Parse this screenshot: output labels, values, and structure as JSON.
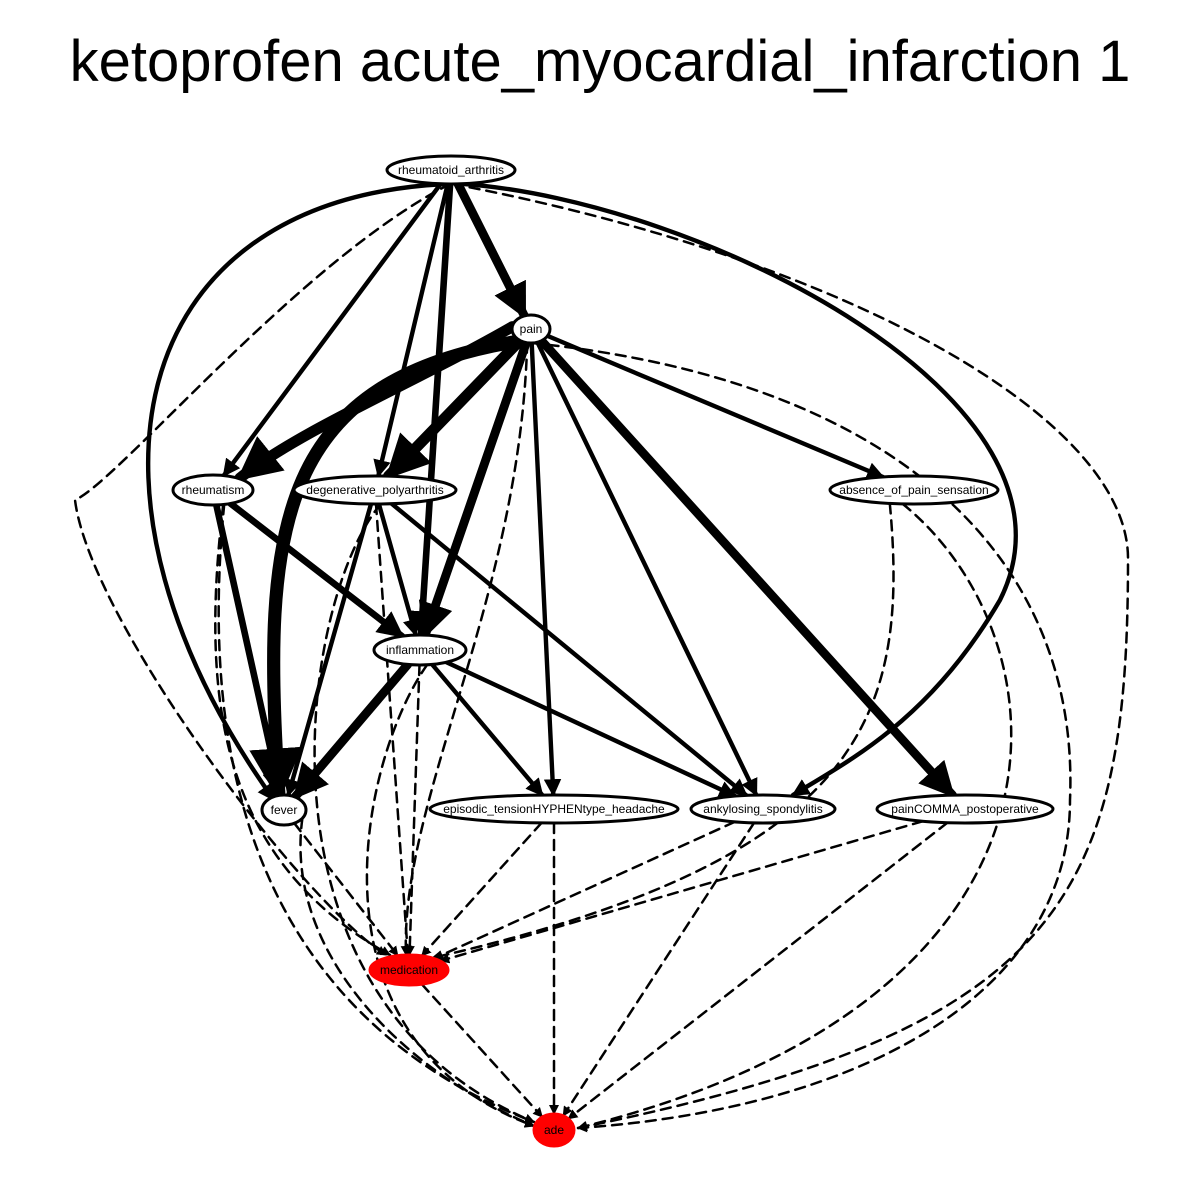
{
  "title": "ketoprofen acute_myocardial_infarction 1",
  "colors": {
    "highlight": "#ff0000",
    "stroke": "#000000",
    "node_fill": "#ffffff"
  },
  "nodes": [
    {
      "id": "rheumatoid_arthritis",
      "label": "rheumatoid_arthritis",
      "highlight": false
    },
    {
      "id": "pain",
      "label": "pain",
      "highlight": false
    },
    {
      "id": "rheumatism",
      "label": "rheumatism",
      "highlight": false
    },
    {
      "id": "degenerative_polyarthritis",
      "label": "degenerative_polyarthritis",
      "highlight": false
    },
    {
      "id": "absence_of_pain_sensation",
      "label": "absence_of_pain_sensation",
      "highlight": false
    },
    {
      "id": "inflammation",
      "label": "inflammation",
      "highlight": false
    },
    {
      "id": "fever",
      "label": "fever",
      "highlight": false
    },
    {
      "id": "episodic_tension_headache",
      "label": "episodic_tensionHYPHENtype_headache",
      "highlight": false
    },
    {
      "id": "ankylosing_spondylitis",
      "label": "ankylosing_spondylitis",
      "highlight": false
    },
    {
      "id": "pain_postoperative",
      "label": "painCOMMA_postoperative",
      "highlight": false
    },
    {
      "id": "medication",
      "label": "medication",
      "highlight": true
    },
    {
      "id": "ade",
      "label": "ade",
      "highlight": true
    }
  ],
  "edges": [
    {
      "from": "rheumatoid_arthritis",
      "to": "pain",
      "style": "solid",
      "weight": 4
    },
    {
      "from": "rheumatoid_arthritis",
      "to": "rheumatism",
      "style": "solid",
      "weight": 2
    },
    {
      "from": "rheumatoid_arthritis",
      "to": "degenerative_polyarthritis",
      "style": "solid",
      "weight": 2
    },
    {
      "from": "rheumatoid_arthritis",
      "to": "inflammation",
      "style": "solid",
      "weight": 3
    },
    {
      "from": "rheumatoid_arthritis",
      "to": "fever",
      "style": "solid",
      "weight": 2
    },
    {
      "from": "rheumatoid_arthritis",
      "to": "ankylosing_spondylitis",
      "style": "solid",
      "weight": 2
    },
    {
      "from": "rheumatoid_arthritis",
      "to": "medication",
      "style": "dashed",
      "weight": 1
    },
    {
      "from": "rheumatoid_arthritis",
      "to": "ade",
      "style": "dashed",
      "weight": 1
    },
    {
      "from": "pain",
      "to": "rheumatism",
      "style": "solid",
      "weight": 5
    },
    {
      "from": "pain",
      "to": "degenerative_polyarthritis",
      "style": "solid",
      "weight": 5
    },
    {
      "from": "pain",
      "to": "inflammation",
      "style": "solid",
      "weight": 4
    },
    {
      "from": "pain",
      "to": "fever",
      "style": "solid",
      "weight": 6
    },
    {
      "from": "pain",
      "to": "absence_of_pain_sensation",
      "style": "solid",
      "weight": 2
    },
    {
      "from": "pain",
      "to": "episodic_tension_headache",
      "style": "solid",
      "weight": 2
    },
    {
      "from": "pain",
      "to": "ankylosing_spondylitis",
      "style": "solid",
      "weight": 2
    },
    {
      "from": "pain",
      "to": "pain_postoperative",
      "style": "solid",
      "weight": 4
    },
    {
      "from": "pain",
      "to": "medication",
      "style": "dashed",
      "weight": 1
    },
    {
      "from": "pain",
      "to": "ade",
      "style": "dashed",
      "weight": 1
    },
    {
      "from": "rheumatism",
      "to": "inflammation",
      "style": "solid",
      "weight": 3
    },
    {
      "from": "rheumatism",
      "to": "fever",
      "style": "solid",
      "weight": 3
    },
    {
      "from": "rheumatism",
      "to": "medication",
      "style": "dashed",
      "weight": 1
    },
    {
      "from": "rheumatism",
      "to": "ade",
      "style": "dashed",
      "weight": 1
    },
    {
      "from": "degenerative_polyarthritis",
      "to": "inflammation",
      "style": "solid",
      "weight": 2
    },
    {
      "from": "degenerative_polyarthritis",
      "to": "fever",
      "style": "solid",
      "weight": 2
    },
    {
      "from": "degenerative_polyarthritis",
      "to": "ankylosing_spondylitis",
      "style": "solid",
      "weight": 2
    },
    {
      "from": "degenerative_polyarthritis",
      "to": "medication",
      "style": "dashed",
      "weight": 1
    },
    {
      "from": "degenerative_polyarthritis",
      "to": "ade",
      "style": "dashed",
      "weight": 1
    },
    {
      "from": "absence_of_pain_sensation",
      "to": "medication",
      "style": "dashed",
      "weight": 1
    },
    {
      "from": "absence_of_pain_sensation",
      "to": "ade",
      "style": "dashed",
      "weight": 1
    },
    {
      "from": "inflammation",
      "to": "fever",
      "style": "solid",
      "weight": 4
    },
    {
      "from": "inflammation",
      "to": "episodic_tension_headache",
      "style": "solid",
      "weight": 2
    },
    {
      "from": "inflammation",
      "to": "ankylosing_spondylitis",
      "style": "solid",
      "weight": 2
    },
    {
      "from": "inflammation",
      "to": "medication",
      "style": "dashed",
      "weight": 1
    },
    {
      "from": "inflammation",
      "to": "ade",
      "style": "dashed",
      "weight": 1
    },
    {
      "from": "fever",
      "to": "medication",
      "style": "dashed",
      "weight": 1
    },
    {
      "from": "fever",
      "to": "ade",
      "style": "dashed",
      "weight": 1
    },
    {
      "from": "episodic_tension_headache",
      "to": "medication",
      "style": "dashed",
      "weight": 1
    },
    {
      "from": "episodic_tension_headache",
      "to": "ade",
      "style": "dashed",
      "weight": 1
    },
    {
      "from": "ankylosing_spondylitis",
      "to": "medication",
      "style": "dashed",
      "weight": 1
    },
    {
      "from": "ankylosing_spondylitis",
      "to": "ade",
      "style": "dashed",
      "weight": 1
    },
    {
      "from": "pain_postoperative",
      "to": "medication",
      "style": "dashed",
      "weight": 1
    },
    {
      "from": "pain_postoperative",
      "to": "ade",
      "style": "dashed",
      "weight": 1
    },
    {
      "from": "medication",
      "to": "ade",
      "style": "dashed",
      "weight": 1
    }
  ]
}
